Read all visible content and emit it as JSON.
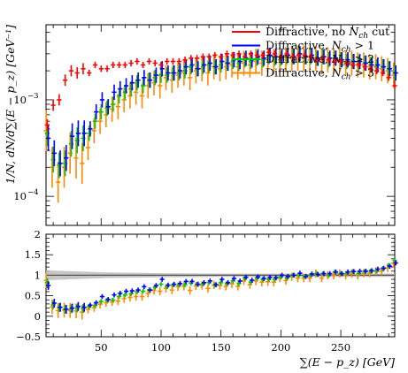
{
  "chart_data": [
    {
      "type": "scatter",
      "panel": "main",
      "yscale": "log",
      "ylim": [
        5e-05,
        0.006
      ],
      "xlim": [
        4,
        295
      ],
      "ylabel": "1/N, dN/d∑(E − p_z) [GeV⁻¹]",
      "yticks": [
        {
          "v": 0.0001,
          "label": "10⁻⁴"
        },
        {
          "v": 0.001,
          "label": "10⁻³"
        }
      ],
      "yticks_sup": {
        "base": "10",
        "exp": [
          "−4",
          "−3"
        ]
      },
      "legend": {
        "position": "top-right"
      },
      "series": [
        {
          "name": "Diffractive, no N_ch cut",
          "color": "#ff0000",
          "x": [
            5,
            10,
            15,
            20,
            25,
            30,
            35,
            40,
            45,
            50,
            55,
            60,
            65,
            70,
            75,
            80,
            85,
            90,
            95,
            100,
            105,
            110,
            115,
            120,
            125,
            130,
            135,
            140,
            145,
            150,
            155,
            160,
            165,
            170,
            175,
            180,
            185,
            190,
            195,
            200,
            205,
            210,
            215,
            220,
            225,
            230,
            235,
            240,
            245,
            250,
            255,
            260,
            265,
            270,
            275,
            280,
            285,
            290,
            295
          ],
          "y": [
            0.00055,
            0.00088,
            0.001,
            0.0016,
            0.002,
            0.0019,
            0.0021,
            0.0019,
            0.0023,
            0.0021,
            0.0021,
            0.0023,
            0.0023,
            0.0023,
            0.0024,
            0.0025,
            0.0023,
            0.0025,
            0.0024,
            0.0023,
            0.0025,
            0.0025,
            0.0025,
            0.0026,
            0.0027,
            0.0027,
            0.0028,
            0.0028,
            0.0029,
            0.0028,
            0.003,
            0.0029,
            0.003,
            0.0028,
            0.003,
            0.0029,
            0.0029,
            0.0031,
            0.003,
            0.0028,
            0.003,
            0.0028,
            0.0029,
            0.0029,
            0.0028,
            0.0026,
            0.0027,
            0.0026,
            0.0025,
            0.0025,
            0.0024,
            0.0023,
            0.0023,
            0.0022,
            0.0021,
            0.002,
            0.0019,
            0.0017,
            0.0014
          ]
        },
        {
          "name": "Diffractive, N_ch > 1",
          "color": "#0000ff",
          "x": [
            5,
            10,
            15,
            20,
            25,
            30,
            35,
            40,
            45,
            50,
            55,
            60,
            65,
            70,
            75,
            80,
            85,
            90,
            95,
            100,
            105,
            110,
            115,
            120,
            125,
            130,
            135,
            140,
            145,
            150,
            155,
            160,
            165,
            170,
            175,
            180,
            185,
            190,
            195,
            200,
            205,
            210,
            215,
            220,
            225,
            230,
            235,
            240,
            245,
            250,
            255,
            260,
            265,
            270,
            275,
            280,
            285,
            290,
            295
          ],
          "y": [
            0.0004,
            0.00028,
            0.00022,
            0.00025,
            0.00042,
            0.00045,
            0.00045,
            0.0005,
            0.00075,
            0.001,
            0.00085,
            0.0012,
            0.0013,
            0.0014,
            0.0015,
            0.0016,
            0.0017,
            0.0016,
            0.0018,
            0.0021,
            0.0019,
            0.0019,
            0.002,
            0.0022,
            0.0023,
            0.0021,
            0.0023,
            0.0024,
            0.0022,
            0.0025,
            0.0024,
            0.0026,
            0.0025,
            0.0027,
            0.0026,
            0.0028,
            0.0027,
            0.0029,
            0.0028,
            0.0028,
            0.0029,
            0.0028,
            0.003,
            0.0028,
            0.0029,
            0.0027,
            0.0028,
            0.0027,
            0.0027,
            0.0026,
            0.0026,
            0.0025,
            0.0025,
            0.0024,
            0.0023,
            0.0023,
            0.0022,
            0.0021,
            0.0019
          ]
        },
        {
          "name": "Diffractive, N_ch > 2",
          "color": "#00cc00",
          "x": [
            5,
            10,
            15,
            20,
            25,
            30,
            35,
            40,
            45,
            50,
            55,
            60,
            65,
            70,
            75,
            80,
            85,
            90,
            95,
            100,
            105,
            110,
            115,
            120,
            125,
            130,
            135,
            140,
            145,
            150,
            155,
            160,
            165,
            170,
            175,
            180,
            185,
            190,
            195,
            200,
            205,
            210,
            215,
            220,
            225,
            230,
            235,
            240,
            245,
            250,
            255,
            260,
            265,
            270,
            275,
            280,
            285,
            290,
            295
          ],
          "y": [
            0.00045,
            0.00024,
            0.00021,
            0.00022,
            0.00035,
            0.00038,
            0.0004,
            0.00045,
            0.0006,
            0.00075,
            0.00082,
            0.0009,
            0.0011,
            0.0012,
            0.0013,
            0.0015,
            0.0014,
            0.0016,
            0.0017,
            0.0018,
            0.0018,
            0.0019,
            0.0019,
            0.002,
            0.0022,
            0.0021,
            0.0022,
            0.0023,
            0.0022,
            0.0023,
            0.0024,
            0.0025,
            0.0024,
            0.0026,
            0.0025,
            0.0027,
            0.0026,
            0.0028,
            0.0027,
            0.0027,
            0.0028,
            0.0028,
            0.0029,
            0.0028,
            0.0028,
            0.0027,
            0.0028,
            0.0026,
            0.0027,
            0.0026,
            0.0025,
            0.0025,
            0.0024,
            0.0024,
            0.0023,
            0.0022,
            0.0022,
            0.0021,
            0.0019
          ]
        },
        {
          "name": "Diffractive, N_ch > 3",
          "color": "#ff8800",
          "x": [
            5,
            10,
            15,
            20,
            25,
            30,
            35,
            40,
            45,
            50,
            55,
            60,
            65,
            70,
            75,
            80,
            85,
            90,
            95,
            100,
            105,
            110,
            115,
            120,
            125,
            130,
            135,
            140,
            145,
            150,
            155,
            160,
            165,
            170,
            175,
            180,
            185,
            190,
            195,
            200,
            205,
            210,
            215,
            220,
            225,
            230,
            235,
            240,
            245,
            250,
            255,
            260,
            265,
            270,
            275,
            280,
            285,
            290,
            295
          ],
          "y": [
            0.00048,
            0.0002,
            0.00014,
            0.0002,
            0.00028,
            0.00025,
            0.00022,
            0.00032,
            0.00048,
            0.0006,
            0.0007,
            0.0008,
            0.00085,
            0.001,
            0.0011,
            0.0012,
            0.0011,
            0.0014,
            0.0015,
            0.0014,
            0.0017,
            0.0016,
            0.0018,
            0.0019,
            0.0017,
            0.002,
            0.0021,
            0.0019,
            0.0022,
            0.0021,
            0.0022,
            0.0023,
            0.0022,
            0.0024,
            0.0023,
            0.0025,
            0.0024,
            0.0026,
            0.0025,
            0.0026,
            0.0026,
            0.0027,
            0.0027,
            0.0027,
            0.0026,
            0.0027,
            0.0025,
            0.0026,
            0.0025,
            0.0026,
            0.0024,
            0.0024,
            0.0023,
            0.0023,
            0.0022,
            0.0022,
            0.0021,
            0.002,
            0.0018
          ]
        }
      ]
    },
    {
      "type": "scatter",
      "panel": "ratio",
      "ylim": [
        -0.5,
        2
      ],
      "xlim": [
        4,
        295
      ],
      "xlabel": "∑(E − p_z) [GeV]",
      "yticks": [
        -0.5,
        0,
        0.5,
        1,
        1.5,
        2
      ],
      "ytick_labels": [
        "−0.5",
        "0",
        "0.5",
        "1",
        "1.5",
        "2"
      ],
      "xticks": [
        50,
        100,
        150,
        200,
        250
      ],
      "xtick_labels": [
        "50",
        "100",
        "150",
        "200",
        "250"
      ],
      "reference_line": 1,
      "uncertainty_band": {
        "color": "#bbbbbb",
        "center": 1,
        "halfwidth": [
          0.12,
          0.07,
          0.05,
          0.04,
          0.04,
          0.04,
          0.04
        ]
      },
      "series": [
        {
          "color": "#0000ff",
          "x": [
            5,
            10,
            15,
            20,
            25,
            30,
            35,
            40,
            45,
            50,
            55,
            60,
            65,
            70,
            75,
            80,
            85,
            90,
            95,
            100,
            105,
            110,
            115,
            120,
            125,
            130,
            135,
            140,
            145,
            150,
            155,
            160,
            165,
            170,
            175,
            180,
            185,
            190,
            195,
            200,
            205,
            210,
            215,
            220,
            225,
            230,
            235,
            240,
            245,
            250,
            255,
            260,
            265,
            270,
            275,
            280,
            285,
            290,
            295
          ],
          "y": [
            0.75,
            0.32,
            0.22,
            0.17,
            0.2,
            0.24,
            0.22,
            0.27,
            0.33,
            0.48,
            0.41,
            0.52,
            0.56,
            0.61,
            0.62,
            0.64,
            0.72,
            0.64,
            0.75,
            0.9,
            0.76,
            0.78,
            0.8,
            0.85,
            0.85,
            0.78,
            0.82,
            0.86,
            0.77,
            0.9,
            0.82,
            0.92,
            0.86,
            0.95,
            0.88,
            0.96,
            0.92,
            0.95,
            0.94,
            1.0,
            0.97,
            1.0,
            1.05,
            0.97,
            1.03,
            1.02,
            1.04,
            1.04,
            1.08,
            1.04,
            1.08,
            1.09,
            1.1,
            1.1,
            1.11,
            1.15,
            1.17,
            1.22,
            1.3
          ]
        },
        {
          "color": "#00cc00",
          "x": [
            5,
            10,
            15,
            20,
            25,
            30,
            35,
            40,
            45,
            50,
            55,
            60,
            65,
            70,
            75,
            80,
            85,
            90,
            95,
            100,
            105,
            110,
            115,
            120,
            125,
            130,
            135,
            140,
            145,
            150,
            155,
            160,
            165,
            170,
            175,
            180,
            185,
            190,
            195,
            200,
            205,
            210,
            215,
            220,
            225,
            230,
            235,
            240,
            245,
            250,
            255,
            260,
            265,
            270,
            275,
            280,
            285,
            290,
            295
          ],
          "y": [
            0.82,
            0.28,
            0.21,
            0.17,
            0.18,
            0.2,
            0.19,
            0.24,
            0.26,
            0.36,
            0.39,
            0.39,
            0.48,
            0.52,
            0.55,
            0.6,
            0.61,
            0.64,
            0.71,
            0.78,
            0.72,
            0.76,
            0.76,
            0.77,
            0.81,
            0.78,
            0.79,
            0.82,
            0.76,
            0.82,
            0.8,
            0.86,
            0.8,
            0.93,
            0.83,
            0.93,
            0.9,
            0.9,
            0.9,
            0.96,
            0.93,
            1.0,
            1.0,
            0.97,
            1.0,
            1.04,
            1.04,
            1.0,
            1.08,
            1.04,
            1.04,
            1.09,
            1.04,
            1.09,
            1.1,
            1.1,
            1.16,
            1.24,
            1.36
          ]
        },
        {
          "color": "#ff8800",
          "x": [
            5,
            10,
            15,
            20,
            25,
            30,
            35,
            40,
            45,
            50,
            55,
            60,
            65,
            70,
            75,
            80,
            85,
            90,
            95,
            100,
            105,
            110,
            115,
            120,
            125,
            130,
            135,
            140,
            145,
            150,
            155,
            160,
            165,
            170,
            175,
            180,
            185,
            190,
            195,
            200,
            205,
            210,
            215,
            220,
            225,
            230,
            235,
            240,
            245,
            250,
            255,
            260,
            265,
            270,
            275,
            280,
            285,
            290,
            295
          ],
          "y": [
            0.87,
            0.23,
            0.14,
            0.15,
            0.14,
            0.13,
            0.1,
            0.17,
            0.21,
            0.29,
            0.33,
            0.35,
            0.37,
            0.43,
            0.46,
            0.48,
            0.48,
            0.56,
            0.63,
            0.61,
            0.68,
            0.64,
            0.72,
            0.73,
            0.63,
            0.74,
            0.75,
            0.68,
            0.76,
            0.75,
            0.73,
            0.79,
            0.73,
            0.86,
            0.77,
            0.86,
            0.83,
            0.84,
            0.83,
            0.93,
            0.87,
            0.96,
            0.93,
            0.93,
            0.93,
            1.04,
            0.93,
            1.0,
            1.0,
            1.04,
            1.0,
            1.04,
            1.0,
            1.05,
            1.05,
            1.1,
            1.1,
            1.18,
            1.29
          ]
        }
      ]
    }
  ],
  "legend_entries": [
    {
      "color": "#ff0000",
      "base": "Diffractive, no ",
      "var": "N",
      "sub": "ch",
      "tail": " cut"
    },
    {
      "color": "#0000ff",
      "base": "Diffractive, ",
      "var": "N",
      "sub": "ch",
      "tail": " > 1"
    },
    {
      "color": "#00cc00",
      "base": "Diffractive, ",
      "var": "N",
      "sub": "ch",
      "tail": " > 2"
    },
    {
      "color": "#ff8800",
      "base": "Diffractive, ",
      "var": "N",
      "sub": "ch",
      "tail": " > 3"
    }
  ]
}
